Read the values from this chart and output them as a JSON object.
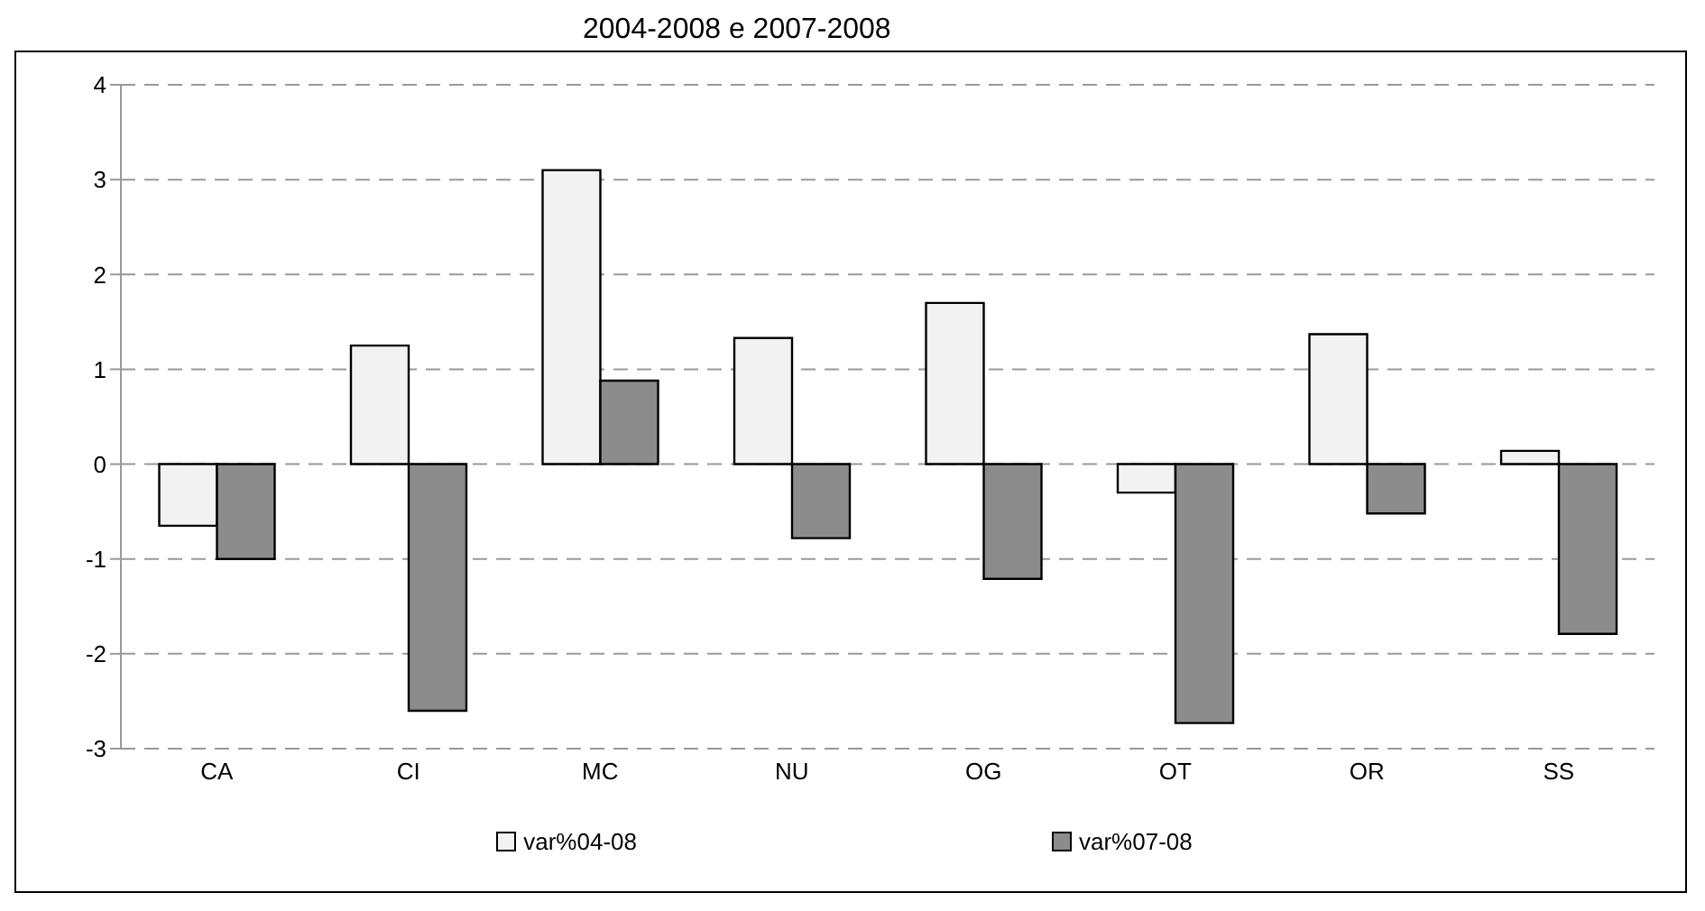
{
  "chart_data": {
    "type": "bar",
    "title": "2004-2008 e 2007-2008",
    "categories": [
      "CA",
      "CI",
      "MC",
      "NU",
      "OG",
      "OT",
      "OR",
      "SS"
    ],
    "series": [
      {
        "name": "var%04-08",
        "color": "#f2f2f2",
        "values": [
          -0.65,
          1.25,
          3.1,
          1.33,
          1.7,
          -0.3,
          1.37,
          0.14
        ]
      },
      {
        "name": "var%07-08",
        "color": "#8c8c8c",
        "values": [
          -1.0,
          -2.6,
          0.88,
          -0.78,
          -1.21,
          -2.73,
          -0.52,
          -1.79
        ]
      }
    ],
    "ylim": [
      -3,
      4
    ],
    "yticks": [
      -3,
      -2,
      -1,
      0,
      1,
      2,
      3,
      4
    ],
    "grid": "y",
    "legend": "bottom"
  }
}
